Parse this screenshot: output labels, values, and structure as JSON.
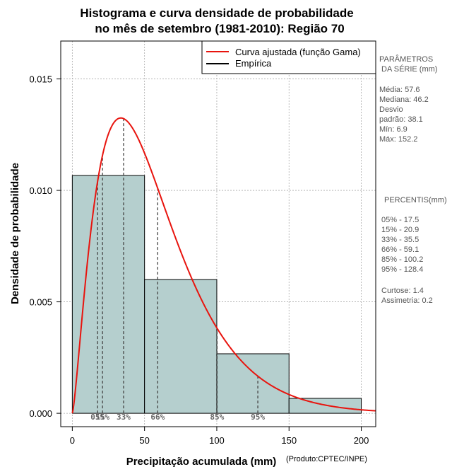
{
  "colors": {
    "bar_fill": "#b5cfce",
    "bar_stroke": "#000000",
    "curve": "#e8140e",
    "percentile_line": "#444444",
    "grid": "#aaaaaa"
  },
  "chart_data": {
    "type": "bar",
    "title": [
      "Histograma e curva densidade de probabilidade",
      "no mês de setembro (1981-2010): Região 70"
    ],
    "xlabel": "Precipitação acumulada (mm)",
    "ylabel": "Densidade de probabilidade",
    "credit": "(Produto:CPTEC/INPE)",
    "xlim": [
      -8,
      210
    ],
    "ylim": [
      -0.0006,
      0.0167
    ],
    "x_ticks": [
      0,
      50,
      100,
      150,
      200
    ],
    "x_tick_labels": [
      "0",
      "50",
      "100",
      "150",
      "200"
    ],
    "y_ticks": [
      0.0,
      0.005,
      0.01,
      0.015
    ],
    "y_tick_labels": [
      "0.000",
      "0.005",
      "0.010",
      "0.015"
    ],
    "grid": true,
    "bins": [
      {
        "from": 0,
        "to": 50,
        "density": 0.01067
      },
      {
        "from": 50,
        "to": 100,
        "density": 0.006
      },
      {
        "from": 100,
        "to": 150,
        "density": 0.00267
      },
      {
        "from": 150,
        "to": 200,
        "density": 0.00067
      }
    ],
    "fitted_curve": {
      "distribution": "gamma",
      "shape": 2.4,
      "scale": 24.0
    },
    "percentiles": [
      {
        "label": "05%",
        "x": 17.5
      },
      {
        "label": "15%",
        "x": 20.9
      },
      {
        "label": "33%",
        "x": 35.5
      },
      {
        "label": "66%",
        "x": 59.1
      },
      {
        "label": "85%",
        "x": 100.2
      },
      {
        "label": "95%",
        "x": 128.4
      }
    ],
    "legend": {
      "position": "top-right",
      "entries": [
        {
          "name": "Curva ajustada (função Gama)",
          "color": "#e8140e"
        },
        {
          "name": "Empírica",
          "color": "#000000"
        }
      ]
    }
  },
  "side_panel": {
    "params_title": [
      "PARÂMETROS",
      "DA SÉRIE (mm)"
    ],
    "params": [
      "Média:  57.6",
      "Mediana:  46.2",
      "Desvio",
      "padrão:  38.1",
      "Mín:  6.9",
      "Máx:  152.2"
    ],
    "percentiles_title": "PERCENTIS(mm)",
    "percentiles": [
      "05% -  17.5",
      "15% -  20.9",
      "33% -  35.5",
      "66% -  59.1",
      "85% -  100.2",
      "95% -  128.4"
    ],
    "stats": [
      "Curtose:  1.4",
      "Assimetria:  0.2"
    ]
  }
}
